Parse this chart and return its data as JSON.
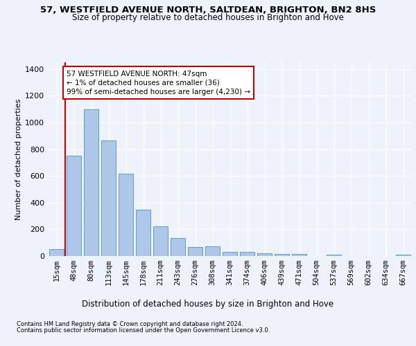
{
  "title_line1": "57, WESTFIELD AVENUE NORTH, SALTDEAN, BRIGHTON, BN2 8HS",
  "title_line2": "Size of property relative to detached houses in Brighton and Hove",
  "xlabel": "Distribution of detached houses by size in Brighton and Hove",
  "ylabel": "Number of detached properties",
  "categories": [
    "15sqm",
    "48sqm",
    "80sqm",
    "113sqm",
    "145sqm",
    "178sqm",
    "211sqm",
    "243sqm",
    "276sqm",
    "308sqm",
    "341sqm",
    "374sqm",
    "406sqm",
    "439sqm",
    "471sqm",
    "504sqm",
    "537sqm",
    "569sqm",
    "602sqm",
    "634sqm",
    "667sqm"
  ],
  "values": [
    50,
    750,
    1100,
    865,
    615,
    345,
    225,
    135,
    65,
    70,
    33,
    33,
    22,
    15,
    15,
    0,
    12,
    0,
    0,
    0,
    12
  ],
  "bar_color": "#aec6e8",
  "bar_edgecolor": "#5b9bd5",
  "annotation_text": "57 WESTFIELD AVENUE NORTH: 47sqm\n← 1% of detached houses are smaller (36)\n99% of semi-detached houses are larger (4,230) →",
  "annotation_box_color": "#ffffff",
  "annotation_box_edgecolor": "#cc0000",
  "vline_color": "#cc0000",
  "ylim": [
    0,
    1450
  ],
  "yticks": [
    0,
    200,
    400,
    600,
    800,
    1000,
    1200,
    1400
  ],
  "footnote1": "Contains HM Land Registry data © Crown copyright and database right 2024.",
  "footnote2": "Contains public sector information licensed under the Open Government Licence v3.0.",
  "background_color": "#eef2fb",
  "grid_color": "#ffffff",
  "title_fontsize": 9.5,
  "subtitle_fontsize": 8.5,
  "ylabel_fontsize": 8,
  "xlabel_fontsize": 8.5,
  "tick_fontsize": 7.5,
  "ytick_fontsize": 8,
  "footnote_fontsize": 6,
  "annotation_fontsize": 7.5
}
